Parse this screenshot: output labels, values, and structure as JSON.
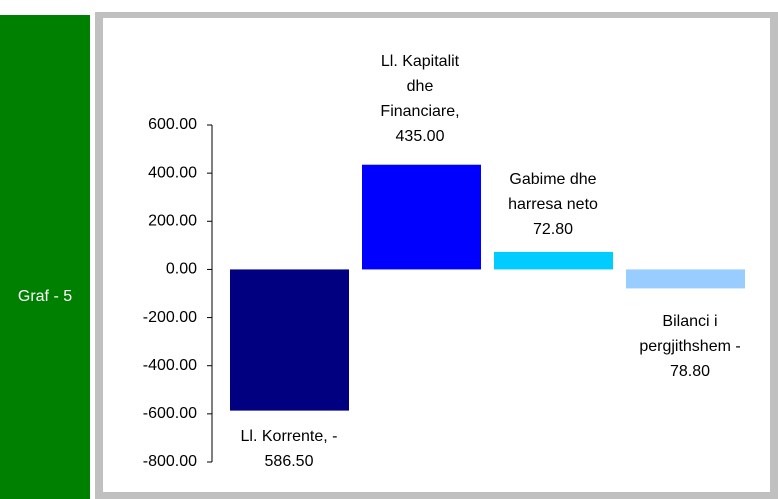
{
  "sidebar_label": "Graf - 5",
  "chart_data": {
    "type": "bar",
    "values": [
      -586.5,
      435,
      72.8,
      -78.8
    ],
    "value_labels": [
      [
        "Ll. Korrente, -",
        "586.50"
      ],
      [
        "Ll. Kapitalit",
        "dhe",
        "Financiare,",
        "435.00"
      ],
      [
        "Gabime dhe",
        "harresa neto",
        "72.80"
      ],
      [
        "Bilanci i",
        "pergjithshem -",
        "78.80"
      ]
    ],
    "colors": [
      "#000080",
      "#0000ff",
      "#00ccff",
      "#99ccff"
    ],
    "ylim": [
      -800,
      600
    ],
    "yticks": [
      {
        "value": -800,
        "label": "-800.00"
      },
      {
        "value": -600,
        "label": "-600.00"
      },
      {
        "value": -400,
        "label": "-400.00"
      },
      {
        "value": -200,
        "label": "-200.00"
      },
      {
        "value": 0,
        "label": "0.00"
      },
      {
        "value": 200,
        "label": "200.00"
      },
      {
        "value": 400,
        "label": "400.00"
      },
      {
        "value": 600,
        "label": "600.00"
      }
    ]
  }
}
